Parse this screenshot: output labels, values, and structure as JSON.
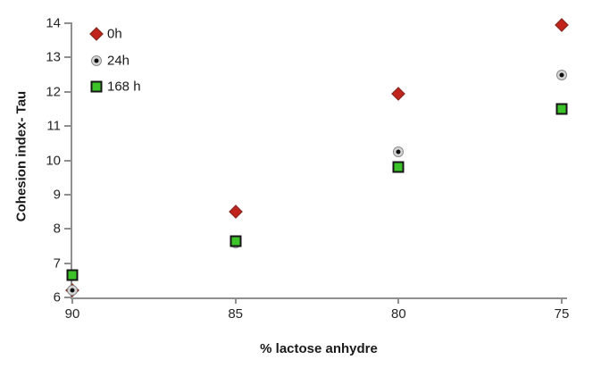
{
  "figure": {
    "background": "#ffffff"
  },
  "colors": {
    "axis_line": "#8f8f8f",
    "text": "#262626",
    "series_0h_fill": "#c0241c",
    "series_0h_border": "#7b2d24",
    "series_24h_dot": "#0f0f0f",
    "series_24h_ring": "#d6d6d6",
    "series_168h_fill": "#3cc32a",
    "series_168h_border": "#161616"
  },
  "chart_data": {
    "type": "scatter",
    "title": "",
    "xlabel": "% lactose anhydre",
    "ylabel": "Cohesion index- Tau",
    "x": [
      90,
      85,
      80,
      75
    ],
    "x_axis_reversed": true,
    "ylim": [
      6,
      14
    ],
    "y_ticks": [
      6,
      7,
      8,
      9,
      10,
      11,
      12,
      13,
      14
    ],
    "x_ticks": [
      90,
      85,
      80,
      75
    ],
    "grid": false,
    "legend_position": "top-left-inside",
    "series": [
      {
        "name": "0h",
        "marker": "diamond",
        "color": "#c0241c",
        "values": [
          6.2,
          8.5,
          11.95,
          13.95
        ]
      },
      {
        "name": "24h",
        "marker": "circle-dot",
        "color": "#0f0f0f",
        "values": [
          6.2,
          7.6,
          10.25,
          12.5
        ]
      },
      {
        "name": "168 h",
        "marker": "square",
        "color": "#3cc32a",
        "values": [
          6.65,
          7.65,
          9.8,
          11.5
        ]
      }
    ]
  }
}
